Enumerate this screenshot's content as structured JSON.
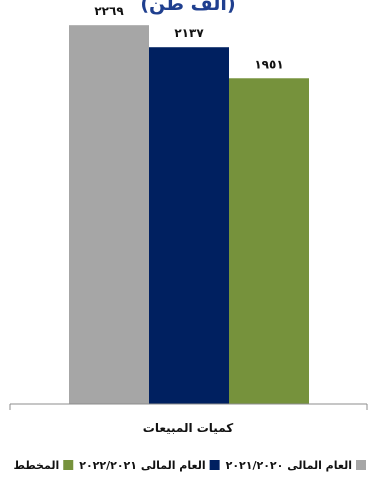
{
  "chart_data": {
    "type": "bar",
    "title": "(ألف طن)",
    "categories": [
      "كميات المبيعات"
    ],
    "series": [
      {
        "name": "العام المالى ٢٠٢١/٢٠٢٠",
        "values": [
          2269
        ],
        "value_label": "٢٢٦٩",
        "color": "#a6a6a6"
      },
      {
        "name": "العام المالى ٢٠٢٢/٢٠٢١",
        "values": [
          2137
        ],
        "value_label": "٢١٣٧",
        "color": "#002060"
      },
      {
        "name": "المخطط",
        "values": [
          1951
        ],
        "value_label": "١٩٥١",
        "color": "#76923c"
      }
    ],
    "ylim": [
      0,
      2300
    ],
    "grid": false,
    "legend": "bottom"
  }
}
